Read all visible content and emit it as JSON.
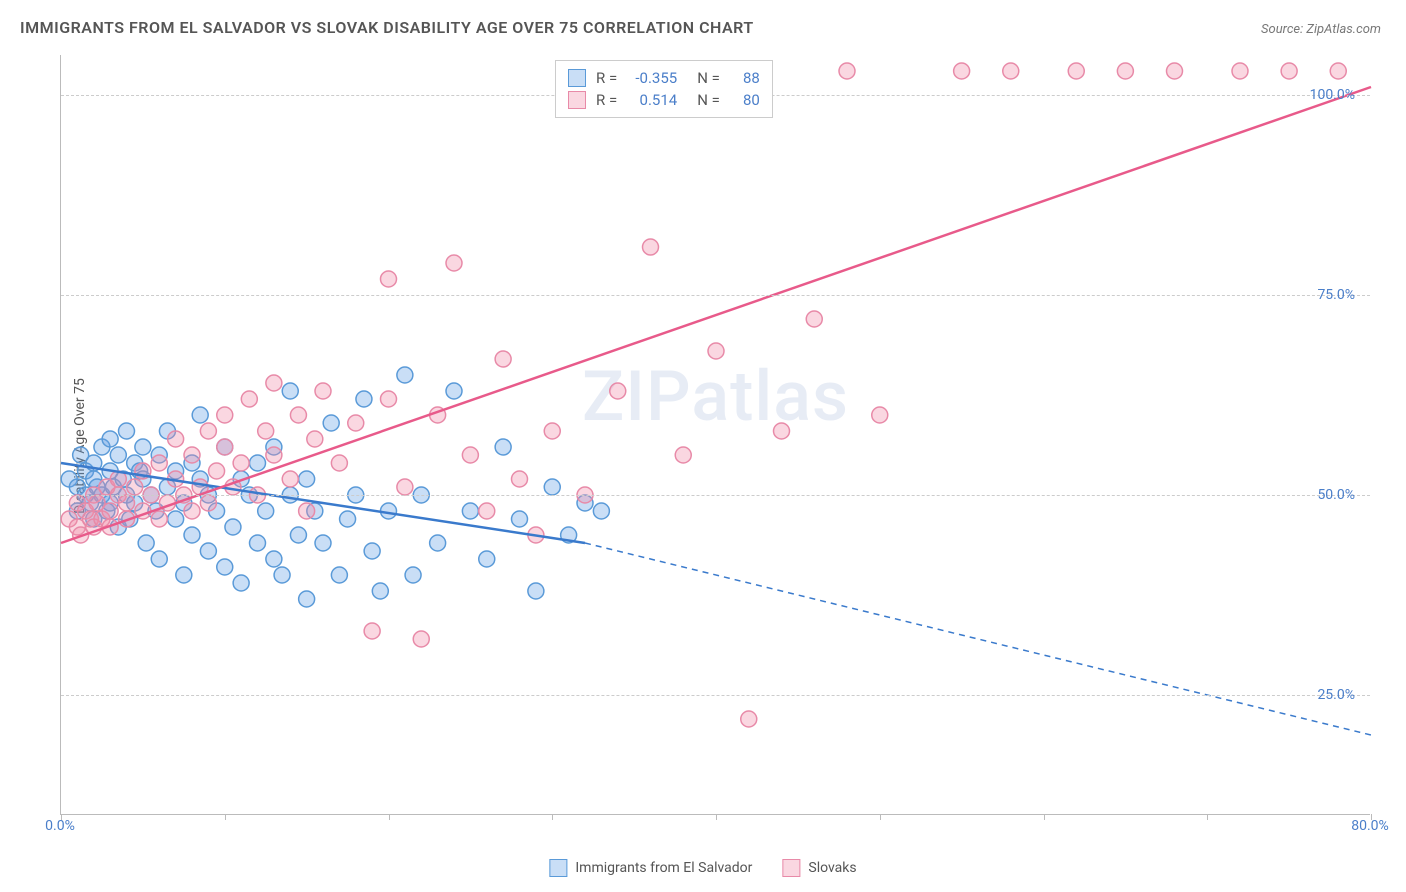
{
  "title": "IMMIGRANTS FROM EL SALVADOR VS SLOVAK DISABILITY AGE OVER 75 CORRELATION CHART",
  "source": "Source: ZipAtlas.com",
  "ylabel": "Disability Age Over 75",
  "watermark": "ZIPatlas",
  "chart": {
    "type": "scatter",
    "xlim": [
      0,
      80
    ],
    "ylim": [
      10,
      105
    ],
    "x_ticks": [
      0,
      10,
      20,
      30,
      40,
      50,
      60,
      70,
      80
    ],
    "x_tick_labels": {
      "0": "0.0%",
      "80": "80.0%"
    },
    "y_ticks": [
      25,
      50,
      75,
      100
    ],
    "y_tick_labels": [
      "25.0%",
      "50.0%",
      "75.0%",
      "100.0%"
    ],
    "background_color": "#ffffff",
    "grid_color": "#cccccc",
    "axis_color": "#bbbbbb",
    "label_color": "#4a7ec9",
    "marker_radius": 8,
    "marker_stroke_width": 1.5,
    "trend_line_width": 2.5,
    "series": [
      {
        "name": "Immigrants from El Salvador",
        "fill_color": "rgba(100,160,230,0.35)",
        "stroke_color": "#5a9ad8",
        "R": "-0.355",
        "N": "88",
        "trend": {
          "x1": 0,
          "y1": 54,
          "x2_solid": 32,
          "y2_solid": 44,
          "x2": 80,
          "y2": 20,
          "color": "#3a7acc",
          "dash_after_solid": true
        },
        "points": [
          [
            0.5,
            52
          ],
          [
            1,
            51
          ],
          [
            1,
            48
          ],
          [
            1.2,
            55
          ],
          [
            1.5,
            50
          ],
          [
            1.5,
            53
          ],
          [
            1.8,
            49
          ],
          [
            2,
            52
          ],
          [
            2,
            54
          ],
          [
            2,
            47
          ],
          [
            2.2,
            51
          ],
          [
            2.5,
            56
          ],
          [
            2.5,
            50
          ],
          [
            2.8,
            48
          ],
          [
            3,
            53
          ],
          [
            3,
            57
          ],
          [
            3,
            49
          ],
          [
            3.2,
            51
          ],
          [
            3.5,
            55
          ],
          [
            3.5,
            46
          ],
          [
            3.8,
            52
          ],
          [
            4,
            50
          ],
          [
            4,
            58
          ],
          [
            4.2,
            47
          ],
          [
            4.5,
            54
          ],
          [
            4.5,
            49
          ],
          [
            4.8,
            53
          ],
          [
            5,
            52
          ],
          [
            5,
            56
          ],
          [
            5.2,
            44
          ],
          [
            5.5,
            50
          ],
          [
            5.8,
            48
          ],
          [
            6,
            55
          ],
          [
            6,
            42
          ],
          [
            6.5,
            51
          ],
          [
            6.5,
            58
          ],
          [
            7,
            47
          ],
          [
            7,
            53
          ],
          [
            7.5,
            40
          ],
          [
            7.5,
            49
          ],
          [
            8,
            54
          ],
          [
            8,
            45
          ],
          [
            8.5,
            52
          ],
          [
            8.5,
            60
          ],
          [
            9,
            43
          ],
          [
            9,
            50
          ],
          [
            9.5,
            48
          ],
          [
            10,
            56
          ],
          [
            10,
            41
          ],
          [
            10.5,
            46
          ],
          [
            11,
            52
          ],
          [
            11,
            39
          ],
          [
            11.5,
            50
          ],
          [
            12,
            44
          ],
          [
            12,
            54
          ],
          [
            12.5,
            48
          ],
          [
            13,
            42
          ],
          [
            13,
            56
          ],
          [
            13.5,
            40
          ],
          [
            14,
            50
          ],
          [
            14,
            63
          ],
          [
            14.5,
            45
          ],
          [
            15,
            52
          ],
          [
            15,
            37
          ],
          [
            15.5,
            48
          ],
          [
            16,
            44
          ],
          [
            16.5,
            59
          ],
          [
            17,
            40
          ],
          [
            17.5,
            47
          ],
          [
            18,
            50
          ],
          [
            18.5,
            62
          ],
          [
            19,
            43
          ],
          [
            19.5,
            38
          ],
          [
            20,
            48
          ],
          [
            21,
            65
          ],
          [
            21.5,
            40
          ],
          [
            22,
            50
          ],
          [
            23,
            44
          ],
          [
            24,
            63
          ],
          [
            25,
            48
          ],
          [
            26,
            42
          ],
          [
            27,
            56
          ],
          [
            28,
            47
          ],
          [
            29,
            38
          ],
          [
            30,
            51
          ],
          [
            31,
            45
          ],
          [
            32,
            49
          ],
          [
            33,
            48
          ]
        ]
      },
      {
        "name": "Slovaks",
        "fill_color": "rgba(240,140,170,0.35)",
        "stroke_color": "#e88aa8",
        "R": "0.514",
        "N": "80",
        "trend": {
          "x1": 0,
          "y1": 44,
          "x2_solid": 80,
          "y2_solid": 101,
          "x2": 80,
          "y2": 101,
          "color": "#e85a8a",
          "dash_after_solid": false
        },
        "points": [
          [
            0.5,
            47
          ],
          [
            1,
            46
          ],
          [
            1,
            49
          ],
          [
            1.2,
            45
          ],
          [
            1.5,
            48
          ],
          [
            1.8,
            47
          ],
          [
            2,
            50
          ],
          [
            2,
            46
          ],
          [
            2.2,
            49
          ],
          [
            2.5,
            47
          ],
          [
            2.8,
            51
          ],
          [
            3,
            48
          ],
          [
            3,
            46
          ],
          [
            3.5,
            50
          ],
          [
            3.5,
            52
          ],
          [
            4,
            47
          ],
          [
            4,
            49
          ],
          [
            4.5,
            51
          ],
          [
            5,
            48
          ],
          [
            5,
            53
          ],
          [
            5.5,
            50
          ],
          [
            6,
            47
          ],
          [
            6,
            54
          ],
          [
            6.5,
            49
          ],
          [
            7,
            52
          ],
          [
            7,
            57
          ],
          [
            7.5,
            50
          ],
          [
            8,
            48
          ],
          [
            8,
            55
          ],
          [
            8.5,
            51
          ],
          [
            9,
            58
          ],
          [
            9,
            49
          ],
          [
            9.5,
            53
          ],
          [
            10,
            56
          ],
          [
            10,
            60
          ],
          [
            10.5,
            51
          ],
          [
            11,
            54
          ],
          [
            11.5,
            62
          ],
          [
            12,
            50
          ],
          [
            12.5,
            58
          ],
          [
            13,
            55
          ],
          [
            13,
            64
          ],
          [
            14,
            52
          ],
          [
            14.5,
            60
          ],
          [
            15,
            48
          ],
          [
            15.5,
            57
          ],
          [
            16,
            63
          ],
          [
            17,
            54
          ],
          [
            18,
            59
          ],
          [
            19,
            33
          ],
          [
            20,
            62
          ],
          [
            20,
            77
          ],
          [
            21,
            51
          ],
          [
            22,
            32
          ],
          [
            23,
            60
          ],
          [
            24,
            79
          ],
          [
            25,
            55
          ],
          [
            26,
            48
          ],
          [
            27,
            67
          ],
          [
            28,
            52
          ],
          [
            29,
            45
          ],
          [
            30,
            58
          ],
          [
            32,
            50
          ],
          [
            34,
            63
          ],
          [
            36,
            81
          ],
          [
            38,
            55
          ],
          [
            40,
            68
          ],
          [
            42,
            22
          ],
          [
            44,
            58
          ],
          [
            46,
            72
          ],
          [
            48,
            103
          ],
          [
            50,
            60
          ],
          [
            55,
            103
          ],
          [
            58,
            103
          ],
          [
            62,
            103
          ],
          [
            65,
            103
          ],
          [
            68,
            103
          ],
          [
            72,
            103
          ],
          [
            75,
            103
          ],
          [
            78,
            103
          ]
        ]
      }
    ]
  },
  "bottom_legend": [
    {
      "label": "Immigrants from El Salvador",
      "fill": "rgba(100,160,230,0.35)",
      "stroke": "#5a9ad8"
    },
    {
      "label": "Slovaks",
      "fill": "rgba(240,140,170,0.35)",
      "stroke": "#e88aa8"
    }
  ]
}
